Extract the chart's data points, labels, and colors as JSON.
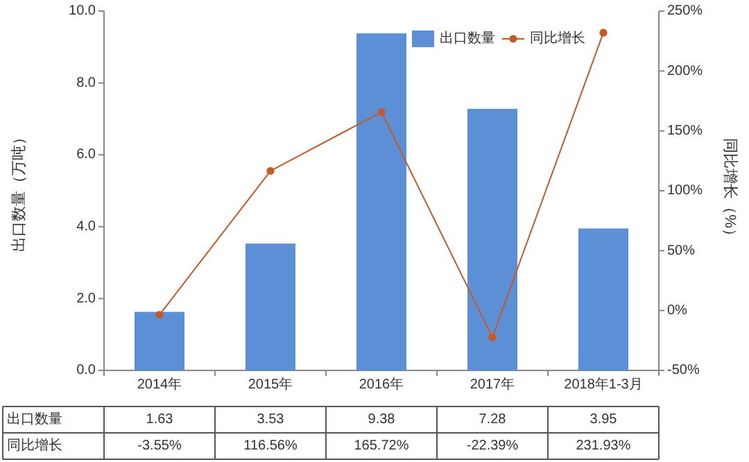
{
  "chart_data": {
    "type": "bar",
    "categories": [
      "2014年",
      "2015年",
      "2016年",
      "2017年",
      "2018年1-3月"
    ],
    "ylabel": "出口数量（万吨）",
    "y2label": "同比增长（%）",
    "series": [
      {
        "name": "出口数量",
        "color": "#5b8fd6",
        "values": [
          1.63,
          3.53,
          9.38,
          7.28,
          3.95
        ],
        "value_labels": [
          "1.63",
          "3.53",
          "9.38",
          "7.28",
          "3.95"
        ]
      },
      {
        "name": "同比增长",
        "type": "line",
        "axis": "y2",
        "color": "#c55a28",
        "values": [
          -3.55,
          116.56,
          165.72,
          -22.39,
          231.93
        ],
        "value_labels": [
          "-3.55%",
          "116.56%",
          "165.72%",
          "-22.39%",
          "231.93%"
        ]
      }
    ],
    "ylim": [
      0,
      10
    ],
    "yticks": [
      {
        "value": 0,
        "label": "0.0"
      },
      {
        "value": 2,
        "label": "2.0"
      },
      {
        "value": 4,
        "label": "4.0"
      },
      {
        "value": 6,
        "label": "6.0"
      },
      {
        "value": 8,
        "label": "8.0"
      },
      {
        "value": 10,
        "label": "10.0"
      }
    ],
    "y2lim": [
      -50,
      250
    ],
    "y2ticks": [
      {
        "value": -50,
        "label": "-50%"
      },
      {
        "value": 0,
        "label": "0%"
      },
      {
        "value": 50,
        "label": "50%"
      },
      {
        "value": 100,
        "label": "100%"
      },
      {
        "value": 150,
        "label": "150%"
      },
      {
        "value": 200,
        "label": "200%"
      },
      {
        "value": 250,
        "label": "250%"
      }
    ],
    "legend": "top right",
    "marker": "circle"
  }
}
